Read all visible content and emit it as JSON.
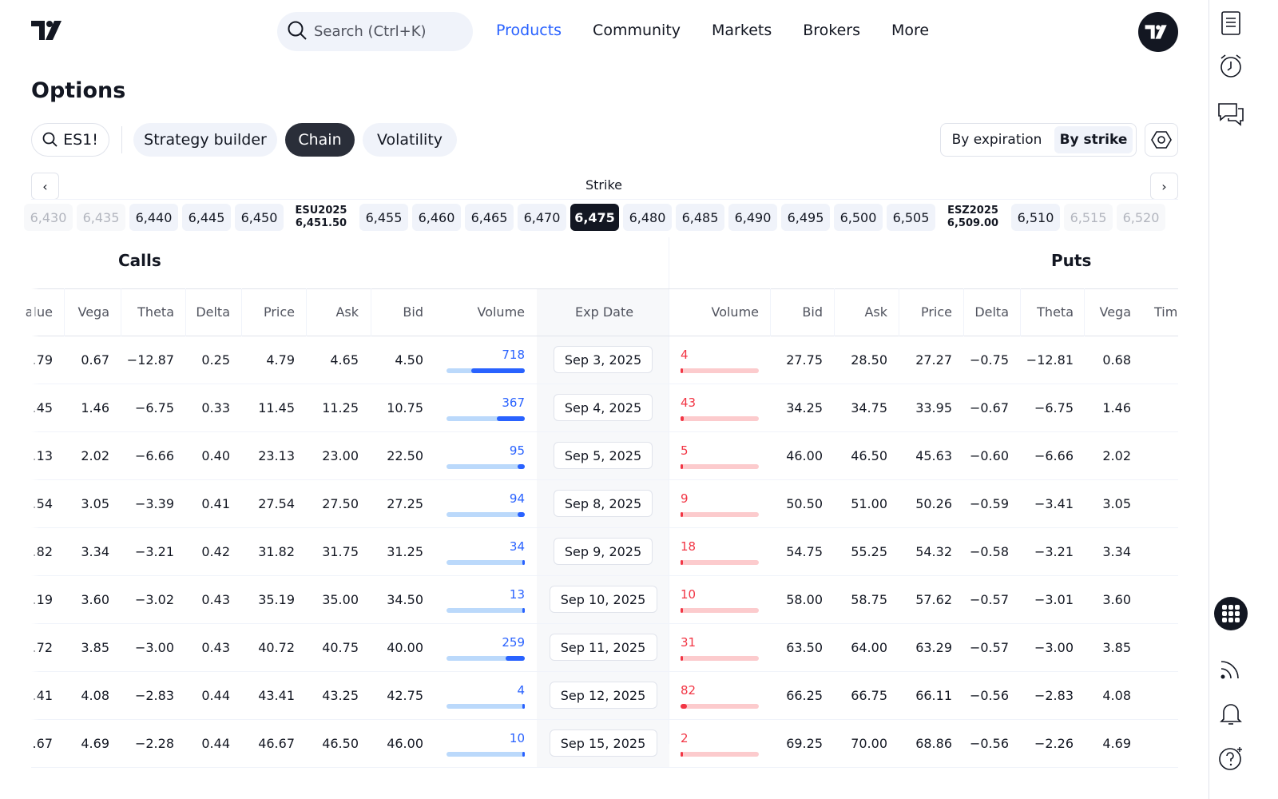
{
  "nav": {
    "search_placeholder": "Search (Ctrl+K)",
    "links": [
      "Products",
      "Community",
      "Markets",
      "Brokers",
      "More"
    ],
    "active_link": "Products"
  },
  "page": {
    "title": "Options"
  },
  "toolbar": {
    "symbol": "ES1!",
    "tabs": [
      "Strategy builder",
      "Chain",
      "Volatility"
    ],
    "active_tab": "Chain",
    "view_options": [
      "By expiration",
      "By strike"
    ],
    "active_view": "By strike"
  },
  "strike": {
    "label": "Strike",
    "items": [
      {
        "type": "strike",
        "value": "6,430",
        "faded": true
      },
      {
        "type": "strike",
        "value": "6,435",
        "faded": true
      },
      {
        "type": "strike",
        "value": "6,440"
      },
      {
        "type": "strike",
        "value": "6,445"
      },
      {
        "type": "strike",
        "value": "6,450"
      },
      {
        "type": "future",
        "name": "ESU2025",
        "value": "6,451.50"
      },
      {
        "type": "strike",
        "value": "6,455"
      },
      {
        "type": "strike",
        "value": "6,460"
      },
      {
        "type": "strike",
        "value": "6,465"
      },
      {
        "type": "strike",
        "value": "6,470"
      },
      {
        "type": "strike",
        "value": "6,475",
        "selected": true
      },
      {
        "type": "strike",
        "value": "6,480"
      },
      {
        "type": "strike",
        "value": "6,485"
      },
      {
        "type": "strike",
        "value": "6,490"
      },
      {
        "type": "strike",
        "value": "6,495"
      },
      {
        "type": "strike",
        "value": "6,500"
      },
      {
        "type": "strike",
        "value": "6,505"
      },
      {
        "type": "future",
        "name": "ESZ2025",
        "value": "6,509.00"
      },
      {
        "type": "strike",
        "value": "6,510"
      },
      {
        "type": "strike",
        "value": "6,515",
        "faded": true
      },
      {
        "type": "strike",
        "value": "6,520",
        "faded": true
      }
    ]
  },
  "table": {
    "calls_label": "Calls",
    "puts_label": "Puts",
    "call_headers": [
      "alue",
      "Vega",
      "Theta",
      "Delta",
      "Price",
      "Ask",
      "Bid",
      "Volume"
    ],
    "exp_header": "Exp Date",
    "put_headers": [
      "Volume",
      "Bid",
      "Ask",
      "Price",
      "Delta",
      "Theta",
      "Vega",
      "Tim"
    ],
    "rows": [
      {
        "call": {
          "value": ".79",
          "vega": "0.67",
          "theta": "−12.87",
          "delta": "0.25",
          "price": "4.79",
          "ask": "4.65",
          "bid": "4.50",
          "volume": "718",
          "vol_pct": 0.68
        },
        "exp": "Sep 3, 2025",
        "put": {
          "volume": "4",
          "vol_pct": 0.01,
          "bid": "27.75",
          "ask": "28.50",
          "price": "27.27",
          "delta": "−0.75",
          "theta": "−12.81",
          "vega": "0.68"
        }
      },
      {
        "call": {
          "value": ".45",
          "vega": "1.46",
          "theta": "−6.75",
          "delta": "0.33",
          "price": "11.45",
          "ask": "11.25",
          "bid": "10.75",
          "volume": "367",
          "vol_pct": 0.36
        },
        "exp": "Sep 4, 2025",
        "put": {
          "volume": "43",
          "vol_pct": 0.04,
          "bid": "34.25",
          "ask": "34.75",
          "price": "33.95",
          "delta": "−0.67",
          "theta": "−6.75",
          "vega": "1.46"
        }
      },
      {
        "call": {
          "value": ".13",
          "vega": "2.02",
          "theta": "−6.66",
          "delta": "0.40",
          "price": "23.13",
          "ask": "23.00",
          "bid": "22.50",
          "volume": "95",
          "vol_pct": 0.09
        },
        "exp": "Sep 5, 2025",
        "put": {
          "volume": "5",
          "vol_pct": 0.01,
          "bid": "46.00",
          "ask": "46.50",
          "price": "45.63",
          "delta": "−0.60",
          "theta": "−6.66",
          "vega": "2.02"
        }
      },
      {
        "call": {
          "value": ".54",
          "vega": "3.05",
          "theta": "−3.39",
          "delta": "0.41",
          "price": "27.54",
          "ask": "27.50",
          "bid": "27.25",
          "volume": "94",
          "vol_pct": 0.09
        },
        "exp": "Sep 8, 2025",
        "put": {
          "volume": "9",
          "vol_pct": 0.01,
          "bid": "50.50",
          "ask": "51.00",
          "price": "50.26",
          "delta": "−0.59",
          "theta": "−3.41",
          "vega": "3.05"
        }
      },
      {
        "call": {
          "value": ".82",
          "vega": "3.34",
          "theta": "−3.21",
          "delta": "0.42",
          "price": "31.82",
          "ask": "31.75",
          "bid": "31.25",
          "volume": "34",
          "vol_pct": 0.03
        },
        "exp": "Sep 9, 2025",
        "put": {
          "volume": "18",
          "vol_pct": 0.02,
          "bid": "54.75",
          "ask": "55.25",
          "price": "54.32",
          "delta": "−0.58",
          "theta": "−3.21",
          "vega": "3.34"
        }
      },
      {
        "call": {
          "value": ".19",
          "vega": "3.60",
          "theta": "−3.02",
          "delta": "0.43",
          "price": "35.19",
          "ask": "35.00",
          "bid": "34.50",
          "volume": "13",
          "vol_pct": 0.01
        },
        "exp": "Sep 10, 2025",
        "put": {
          "volume": "10",
          "vol_pct": 0.01,
          "bid": "58.00",
          "ask": "58.75",
          "price": "57.62",
          "delta": "−0.57",
          "theta": "−3.01",
          "vega": "3.60"
        }
      },
      {
        "call": {
          "value": ".72",
          "vega": "3.85",
          "theta": "−3.00",
          "delta": "0.43",
          "price": "40.72",
          "ask": "40.75",
          "bid": "40.00",
          "volume": "259",
          "vol_pct": 0.24
        },
        "exp": "Sep 11, 2025",
        "put": {
          "volume": "31",
          "vol_pct": 0.03,
          "bid": "63.50",
          "ask": "64.00",
          "price": "63.29",
          "delta": "−0.57",
          "theta": "−3.00",
          "vega": "3.85"
        }
      },
      {
        "call": {
          "value": ".41",
          "vega": "4.08",
          "theta": "−2.83",
          "delta": "0.44",
          "price": "43.41",
          "ask": "43.25",
          "bid": "42.75",
          "volume": "4",
          "vol_pct": 0.0
        },
        "exp": "Sep 12, 2025",
        "put": {
          "volume": "82",
          "vol_pct": 0.08,
          "bid": "66.25",
          "ask": "66.75",
          "price": "66.11",
          "delta": "−0.56",
          "theta": "−2.83",
          "vega": "4.08"
        }
      },
      {
        "call": {
          "value": ".67",
          "vega": "4.69",
          "theta": "−2.28",
          "delta": "0.44",
          "price": "46.67",
          "ask": "46.50",
          "bid": "46.00",
          "volume": "10",
          "vol_pct": 0.01
        },
        "exp": "Sep 15, 2025",
        "put": {
          "volume": "2",
          "vol_pct": 0.0,
          "bid": "69.25",
          "ask": "70.00",
          "price": "68.86",
          "delta": "−0.56",
          "theta": "−2.26",
          "vega": "4.69"
        }
      }
    ]
  },
  "colors": {
    "accent": "#2962ff",
    "put": "#f23645",
    "dark": "#131722"
  },
  "sidebar_icons": [
    "watchlist-icon",
    "alerts-clock-icon",
    "chat-icon",
    "apps-grid-icon",
    "feed-icon",
    "notifications-bell-icon",
    "help-icon"
  ]
}
